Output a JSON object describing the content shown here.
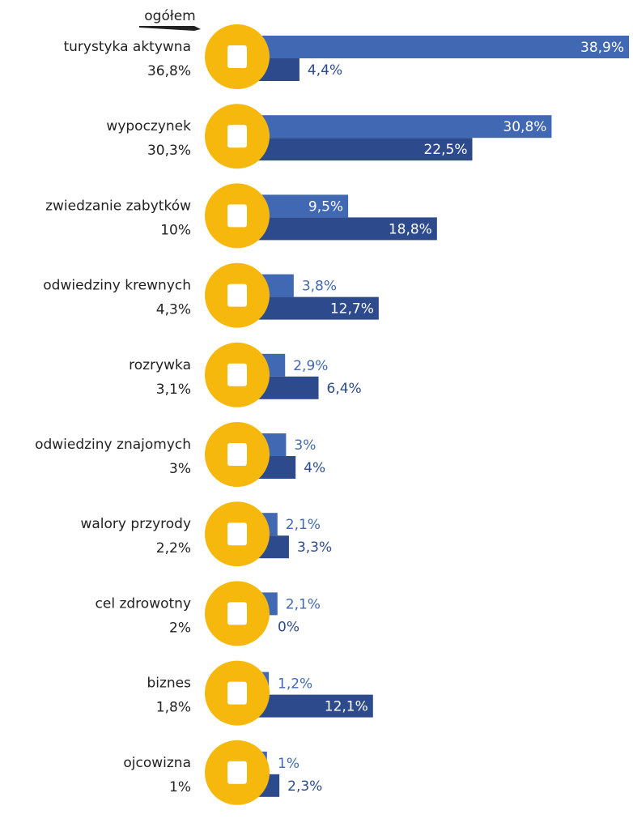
{
  "chart_data": {
    "type": "bar",
    "categories": [
      "turystyka aktywna",
      "wypoczynek",
      "zwiedzanie zabytków",
      "odwiedziny krewnych",
      "rozrywka",
      "odwiedziny znajomych",
      "walory przyrody",
      "cel zdrowotny",
      "biznes",
      "ojcowizna"
    ],
    "overall": {
      "name": "ogółem",
      "values": [
        36.8,
        30.3,
        10,
        4.3,
        3.1,
        3,
        2.2,
        2,
        1.8,
        1
      ],
      "value_labels": [
        "36,8%",
        "30,3%",
        "10%",
        "4,3%",
        "3,1%",
        "3%",
        "2,2%",
        "2%",
        "1,8%",
        "1%"
      ]
    },
    "series": [
      {
        "color": "#4168b2",
        "values": [
          38.9,
          30.8,
          9.5,
          3.8,
          2.9,
          3,
          2.1,
          2.1,
          1.2,
          1
        ],
        "value_labels": [
          "38,9%",
          "30,8%",
          "9,5%",
          "3,8%",
          "2,9%",
          "3%",
          "2,1%",
          "2,1%",
          "1,2%",
          "1%"
        ]
      },
      {
        "color": "#2d4b8c",
        "values": [
          4.4,
          22.5,
          18.8,
          12.7,
          6.4,
          4,
          3.3,
          0,
          12.1,
          2.3
        ],
        "value_labels": [
          "4,4%",
          "22,5%",
          "18,8%",
          "12,7%",
          "6,4%",
          "4%",
          "3,3%",
          "0%",
          "12,1%",
          "2,3%"
        ]
      }
    ],
    "icon_color": "#f6b80c"
  }
}
